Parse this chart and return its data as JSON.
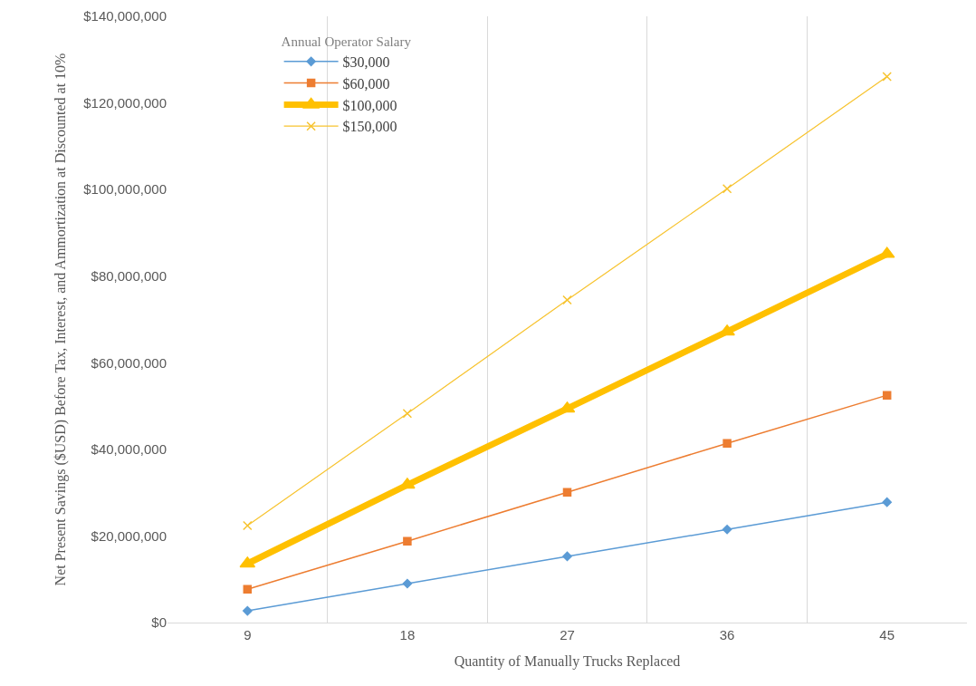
{
  "chart_data": {
    "type": "line",
    "xlabel": "Quantity of Manually Trucks Replaced",
    "ylabel": "Net Present Savings ($USD) Before Tax, Interest, and Ammortization at Discounted at 10%",
    "legend_title": "Annual Operator Salary",
    "categories": [
      "9",
      "18",
      "27",
      "36",
      "45"
    ],
    "series": [
      {
        "name": "$30,000",
        "color": "#5b9bd5",
        "marker": "diamond",
        "values": [
          2700000,
          9000000,
          15300000,
          21500000,
          27800000
        ]
      },
      {
        "name": "$60,000",
        "color": "#ed7d31",
        "marker": "square",
        "values": [
          7700000,
          18800000,
          30100000,
          41400000,
          52500000
        ]
      },
      {
        "name": "$100,000",
        "color": "#ffc000",
        "marker": "triangle",
        "values": [
          13600000,
          31800000,
          49400000,
          67200000,
          85100000
        ]
      },
      {
        "name": "$150,000",
        "color": "#f7c32e",
        "marker": "cross",
        "values": [
          22400000,
          48300000,
          74500000,
          100200000,
          126100000
        ]
      }
    ],
    "ylim": [
      0,
      140000000
    ],
    "yticks": [
      {
        "value": 0,
        "label": "$0"
      },
      {
        "value": 20000000,
        "label": "$20,000,000"
      },
      {
        "value": 40000000,
        "label": "$40,000,000"
      },
      {
        "value": 60000000,
        "label": "$60,000,000"
      },
      {
        "value": 80000000,
        "label": "$80,000,000"
      },
      {
        "value": 100000000,
        "label": "$100,000,000"
      },
      {
        "value": 120000000,
        "label": "$120,000,000"
      },
      {
        "value": 140000000,
        "label": "$140,000,000"
      }
    ],
    "grid": "x",
    "legend": "top left"
  }
}
